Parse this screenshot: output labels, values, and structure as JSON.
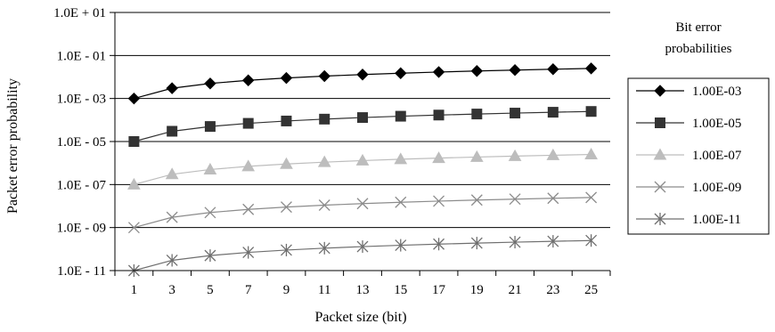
{
  "chart_data": {
    "type": "line",
    "title": "",
    "xlabel": "Packet size (bit)",
    "ylabel": "Packet error probability",
    "y_scale": "log",
    "ylim": [
      1e-11,
      10
    ],
    "x_ticks": [
      1,
      3,
      5,
      7,
      9,
      11,
      13,
      15,
      17,
      19,
      21,
      23,
      25
    ],
    "y_tick_labels": [
      "1.0E + 01",
      "1.0E - 01",
      "1.0E - 03",
      "1.0E - 05",
      "1.0E - 07",
      "1.0E - 09",
      "1.0E - 11"
    ],
    "grid": "horizontal major gridlines",
    "legend_title": "Bit error probabilities",
    "legend_position": "right",
    "series": [
      {
        "name": "1.00E-03",
        "marker": "diamond",
        "color": "#000000",
        "values": [
          0.001,
          0.003,
          0.005,
          0.007,
          0.009,
          0.011,
          0.013,
          0.015,
          0.017,
          0.019,
          0.021,
          0.023,
          0.025
        ]
      },
      {
        "name": "1.00E-05",
        "marker": "square",
        "color": "#333333",
        "values": [
          1e-05,
          3e-05,
          5e-05,
          7e-05,
          9e-05,
          0.00011,
          0.00013,
          0.00015,
          0.00017,
          0.00019,
          0.00021,
          0.00023,
          0.00025
        ]
      },
      {
        "name": "1.00E-07",
        "marker": "triangle",
        "color": "#bdbdbd",
        "values": [
          1e-07,
          3e-07,
          5e-07,
          7e-07,
          9e-07,
          1.1e-06,
          1.3e-06,
          1.5e-06,
          1.7e-06,
          1.9e-06,
          2.1e-06,
          2.3e-06,
          2.5e-06
        ]
      },
      {
        "name": "1.00E-09",
        "marker": "x",
        "color": "#8c8c8c",
        "values": [
          1e-09,
          3e-09,
          5e-09,
          7e-09,
          9e-09,
          1.1e-08,
          1.3e-08,
          1.5e-08,
          1.7e-08,
          1.9e-08,
          2.1e-08,
          2.3e-08,
          2.5e-08
        ]
      },
      {
        "name": "1.00E-11",
        "marker": "star",
        "color": "#6f6f6f",
        "values": [
          1e-11,
          3e-11,
          5e-11,
          7e-11,
          9e-11,
          1.1e-10,
          1.3e-10,
          1.5e-10,
          1.7e-10,
          1.9e-10,
          2.1e-10,
          2.3e-10,
          2.5e-10
        ]
      }
    ]
  }
}
